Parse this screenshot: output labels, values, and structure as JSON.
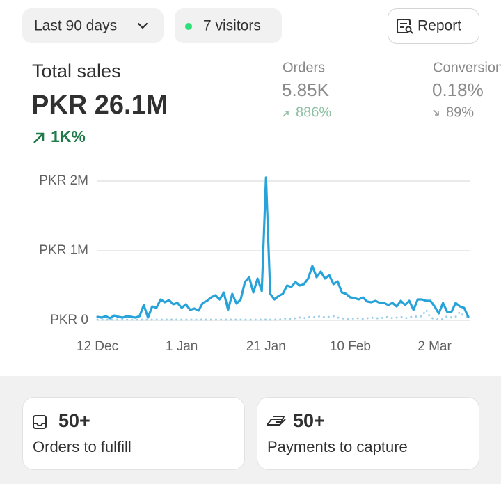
{
  "filters": {
    "date_range": "Last 90 days",
    "visitors": "7 visitors",
    "report": "Report"
  },
  "summary": {
    "title": "Total sales",
    "value": "PKR 26.1M",
    "change": "1K%"
  },
  "metrics": [
    {
      "label": "Orders",
      "value": "5.85K",
      "change": "886%"
    },
    {
      "label": "Conversion rate",
      "value": "0.18%",
      "change": "89%"
    }
  ],
  "chart_data": {
    "type": "line",
    "categories": [
      "12 Dec",
      null,
      null,
      null,
      null,
      null,
      null,
      null,
      null,
      null,
      null,
      null,
      null,
      null,
      null,
      null,
      null,
      null,
      null,
      null,
      "1 Jan",
      null,
      null,
      null,
      null,
      null,
      null,
      null,
      null,
      null,
      null,
      null,
      null,
      null,
      null,
      null,
      null,
      null,
      null,
      null,
      "21 Jan",
      null,
      null,
      null,
      null,
      null,
      null,
      null,
      null,
      null,
      null,
      null,
      null,
      null,
      null,
      null,
      null,
      null,
      null,
      null,
      "10 Feb",
      null,
      null,
      null,
      null,
      null,
      null,
      null,
      null,
      null,
      null,
      null,
      null,
      null,
      null,
      null,
      null,
      null,
      null,
      null,
      "2 Mar",
      null,
      null,
      null,
      null,
      null,
      null,
      null,
      null
    ],
    "series": [
      {
        "color": "#27a3d9",
        "line_style": "solid",
        "values": [
          50000,
          40000,
          60000,
          30000,
          70000,
          50000,
          40000,
          60000,
          50000,
          40000,
          60000,
          220000,
          40000,
          200000,
          180000,
          300000,
          260000,
          290000,
          230000,
          250000,
          180000,
          230000,
          150000,
          170000,
          140000,
          250000,
          280000,
          330000,
          360000,
          300000,
          400000,
          150000,
          380000,
          240000,
          300000,
          550000,
          620000,
          400000,
          600000,
          420000,
          2050000,
          380000,
          300000,
          350000,
          380000,
          500000,
          480000,
          550000,
          500000,
          520000,
          600000,
          780000,
          620000,
          700000,
          600000,
          650000,
          520000,
          560000,
          400000,
          380000,
          330000,
          320000,
          300000,
          330000,
          270000,
          260000,
          280000,
          250000,
          250000,
          220000,
          250000,
          200000,
          280000,
          220000,
          280000,
          150000,
          300000,
          300000,
          280000,
          280000,
          200000,
          100000,
          250000,
          120000,
          120000,
          250000,
          200000,
          180000,
          50000
        ]
      },
      {
        "color": "#9fd0e8",
        "line_style": "dotted",
        "values": [
          10000,
          10000,
          10000,
          10000,
          10000,
          10000,
          10000,
          10000,
          10000,
          10000,
          10000,
          10000,
          10000,
          10000,
          10000,
          10000,
          10000,
          10000,
          10000,
          10000,
          10000,
          10000,
          10000,
          10000,
          10000,
          10000,
          10000,
          10000,
          10000,
          10000,
          10000,
          10000,
          10000,
          10000,
          10000,
          10000,
          10000,
          10000,
          10000,
          10000,
          10000,
          10000,
          10000,
          10000,
          20000,
          30000,
          20000,
          30000,
          40000,
          30000,
          50000,
          40000,
          50000,
          60000,
          40000,
          50000,
          60000,
          40000,
          30000,
          20000,
          20000,
          30000,
          30000,
          20000,
          30000,
          40000,
          30000,
          30000,
          40000,
          50000,
          30000,
          40000,
          50000,
          30000,
          40000,
          60000,
          50000,
          60000,
          150000,
          40000,
          20000,
          10000,
          20000,
          60000,
          40000,
          50000,
          120000,
          60000,
          50000
        ]
      }
    ],
    "ylim": [
      0,
      2000000
    ],
    "yticks": [
      {
        "value": 0,
        "label": "PKR 0"
      },
      {
        "value": 1000000,
        "label": "PKR 1M"
      },
      {
        "value": 2000000,
        "label": "PKR 2M"
      }
    ],
    "grid": true
  },
  "cards": [
    {
      "value": "50+",
      "label": "Orders to fulfill"
    },
    {
      "value": "50+",
      "label": "Payments to capture"
    }
  ]
}
